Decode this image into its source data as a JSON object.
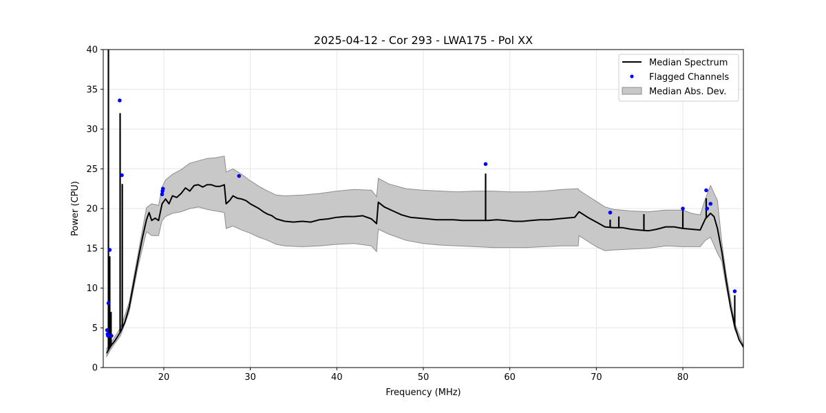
{
  "chart_data": {
    "type": "line",
    "title": "2025-04-12 - Cor 293 - LWA175 - Pol XX",
    "xlabel": "Frequency (MHz)",
    "ylabel": "Power (CPU)",
    "xlim": [
      13,
      87
    ],
    "ylim": [
      0,
      40
    ],
    "xticks": [
      20,
      30,
      40,
      50,
      60,
      70,
      80
    ],
    "yticks": [
      0,
      5,
      10,
      15,
      20,
      25,
      30,
      35,
      40
    ],
    "grid": true,
    "legend_position": "top-right",
    "legend": [
      "Median Spectrum",
      "Flagged Channels",
      "Median Abs. Dev."
    ],
    "colors": {
      "median": "#000000",
      "flagged": "#0000ff",
      "band": "#c8c8c8",
      "band_edge": "#8c8c8c"
    },
    "median_spectrum": [
      [
        13.4,
        1.8
      ],
      [
        13.7,
        2.4
      ],
      [
        14.0,
        2.9
      ],
      [
        14.3,
        3.3
      ],
      [
        14.6,
        3.8
      ],
      [
        15.0,
        4.5
      ],
      [
        15.5,
        5.7
      ],
      [
        16.0,
        7.6
      ],
      [
        16.5,
        10.5
      ],
      [
        17.0,
        13.4
      ],
      [
        17.5,
        16.2
      ],
      [
        18.0,
        18.6
      ],
      [
        18.3,
        19.5
      ],
      [
        18.6,
        18.5
      ],
      [
        19.0,
        18.8
      ],
      [
        19.4,
        18.5
      ],
      [
        19.8,
        20.6
      ],
      [
        20.2,
        21.2
      ],
      [
        20.6,
        20.6
      ],
      [
        21.0,
        21.6
      ],
      [
        21.5,
        21.4
      ],
      [
        22.0,
        21.9
      ],
      [
        22.5,
        22.6
      ],
      [
        23.0,
        22.2
      ],
      [
        23.5,
        22.9
      ],
      [
        24.0,
        23.0
      ],
      [
        24.5,
        22.7
      ],
      [
        25.0,
        23.0
      ],
      [
        25.5,
        23.0
      ],
      [
        26.0,
        22.8
      ],
      [
        26.5,
        22.8
      ],
      [
        27.0,
        23.0
      ],
      [
        27.2,
        20.6
      ],
      [
        27.6,
        21.0
      ],
      [
        28.0,
        21.6
      ],
      [
        28.5,
        21.3
      ],
      [
        29.0,
        21.2
      ],
      [
        29.5,
        21.0
      ],
      [
        30.0,
        20.6
      ],
      [
        30.5,
        20.3
      ],
      [
        31.0,
        20.0
      ],
      [
        31.5,
        19.6
      ],
      [
        32.0,
        19.3
      ],
      [
        32.5,
        19.1
      ],
      [
        33.0,
        18.7
      ],
      [
        34.0,
        18.4
      ],
      [
        35.0,
        18.3
      ],
      [
        36.0,
        18.4
      ],
      [
        37.0,
        18.3
      ],
      [
        38.0,
        18.6
      ],
      [
        39.0,
        18.7
      ],
      [
        40.0,
        18.9
      ],
      [
        41.0,
        19.0
      ],
      [
        42.0,
        19.0
      ],
      [
        43.0,
        19.1
      ],
      [
        44.0,
        18.7
      ],
      [
        44.6,
        18.1
      ],
      [
        44.8,
        20.8
      ],
      [
        45.5,
        20.2
      ],
      [
        46.5,
        19.7
      ],
      [
        47.5,
        19.2
      ],
      [
        48.5,
        18.9
      ],
      [
        49.5,
        18.8
      ],
      [
        50.5,
        18.7
      ],
      [
        51.5,
        18.6
      ],
      [
        52.5,
        18.6
      ],
      [
        53.5,
        18.6
      ],
      [
        54.5,
        18.5
      ],
      [
        55.5,
        18.5
      ],
      [
        56.5,
        18.5
      ],
      [
        57.5,
        18.5
      ],
      [
        58.5,
        18.6
      ],
      [
        59.5,
        18.5
      ],
      [
        60.5,
        18.4
      ],
      [
        61.5,
        18.4
      ],
      [
        62.5,
        18.5
      ],
      [
        63.5,
        18.6
      ],
      [
        64.5,
        18.6
      ],
      [
        65.5,
        18.7
      ],
      [
        66.5,
        18.8
      ],
      [
        67.5,
        18.9
      ],
      [
        68.0,
        19.6
      ],
      [
        69.0,
        18.9
      ],
      [
        70.0,
        18.3
      ],
      [
        71.0,
        17.7
      ],
      [
        72.0,
        17.6
      ],
      [
        73.0,
        17.6
      ],
      [
        74.0,
        17.4
      ],
      [
        75.0,
        17.3
      ],
      [
        76.0,
        17.2
      ],
      [
        77.0,
        17.4
      ],
      [
        78.0,
        17.7
      ],
      [
        79.0,
        17.7
      ],
      [
        80.0,
        17.5
      ],
      [
        81.0,
        17.4
      ],
      [
        82.0,
        17.3
      ],
      [
        82.6,
        18.7
      ],
      [
        83.2,
        19.4
      ],
      [
        83.6,
        19.0
      ],
      [
        84.0,
        17.5
      ],
      [
        84.5,
        14.6
      ],
      [
        85.0,
        11.0
      ],
      [
        85.5,
        7.7
      ],
      [
        86.0,
        5.2
      ],
      [
        86.5,
        3.5
      ],
      [
        87.0,
        2.6
      ]
    ],
    "mad_upper": [
      [
        13.4,
        2.4
      ],
      [
        14.0,
        3.3
      ],
      [
        15.0,
        5.0
      ],
      [
        16.0,
        8.2
      ],
      [
        17.0,
        14.2
      ],
      [
        18.0,
        20.1
      ],
      [
        18.6,
        20.6
      ],
      [
        19.4,
        20.4
      ],
      [
        19.8,
        22.7
      ],
      [
        20.2,
        23.6
      ],
      [
        21.0,
        24.3
      ],
      [
        22.0,
        24.9
      ],
      [
        23.0,
        25.7
      ],
      [
        24.0,
        26.0
      ],
      [
        25.0,
        26.3
      ],
      [
        26.0,
        26.4
      ],
      [
        27.0,
        26.6
      ],
      [
        27.2,
        24.6
      ],
      [
        28.0,
        25.0
      ],
      [
        29.0,
        24.3
      ],
      [
        30.0,
        23.5
      ],
      [
        31.0,
        22.8
      ],
      [
        32.0,
        22.2
      ],
      [
        33.0,
        21.7
      ],
      [
        34.0,
        21.6
      ],
      [
        36.0,
        21.7
      ],
      [
        38.0,
        21.9
      ],
      [
        40.0,
        22.2
      ],
      [
        42.0,
        22.4
      ],
      [
        44.0,
        22.3
      ],
      [
        44.6,
        21.5
      ],
      [
        44.8,
        23.8
      ],
      [
        46.0,
        23.1
      ],
      [
        48.0,
        22.5
      ],
      [
        50.0,
        22.3
      ],
      [
        52.0,
        22.2
      ],
      [
        54.0,
        22.1
      ],
      [
        56.0,
        22.2
      ],
      [
        58.0,
        22.2
      ],
      [
        60.0,
        22.1
      ],
      [
        62.0,
        22.1
      ],
      [
        64.0,
        22.2
      ],
      [
        66.0,
        22.4
      ],
      [
        67.9,
        22.5
      ],
      [
        68.0,
        22.3
      ],
      [
        69.0,
        21.6
      ],
      [
        70.0,
        20.9
      ],
      [
        71.0,
        20.2
      ],
      [
        72.0,
        19.9
      ],
      [
        74.0,
        19.7
      ],
      [
        76.0,
        19.6
      ],
      [
        78.0,
        19.8
      ],
      [
        80.0,
        19.8
      ],
      [
        81.0,
        19.4
      ],
      [
        82.0,
        19.2
      ],
      [
        82.6,
        21.2
      ],
      [
        83.2,
        22.9
      ],
      [
        84.0,
        21.0
      ],
      [
        84.5,
        15.8
      ],
      [
        85.0,
        11.8
      ],
      [
        86.0,
        5.6
      ],
      [
        87.0,
        2.8
      ]
    ],
    "mad_lower": [
      [
        13.4,
        1.4
      ],
      [
        14.0,
        2.5
      ],
      [
        15.0,
        4.0
      ],
      [
        16.0,
        7.0
      ],
      [
        17.0,
        12.6
      ],
      [
        18.0,
        17.1
      ],
      [
        18.6,
        16.6
      ],
      [
        19.4,
        16.6
      ],
      [
        19.8,
        18.5
      ],
      [
        20.2,
        19.0
      ],
      [
        21.0,
        19.4
      ],
      [
        22.0,
        19.6
      ],
      [
        23.0,
        20.0
      ],
      [
        24.0,
        20.2
      ],
      [
        25.0,
        19.9
      ],
      [
        26.0,
        19.7
      ],
      [
        27.0,
        19.5
      ],
      [
        27.2,
        17.5
      ],
      [
        28.0,
        17.8
      ],
      [
        29.0,
        17.3
      ],
      [
        30.0,
        16.9
      ],
      [
        31.0,
        16.4
      ],
      [
        32.0,
        16.0
      ],
      [
        33.0,
        15.5
      ],
      [
        34.0,
        15.3
      ],
      [
        36.0,
        15.2
      ],
      [
        38.0,
        15.3
      ],
      [
        40.0,
        15.5
      ],
      [
        42.0,
        15.6
      ],
      [
        44.0,
        15.3
      ],
      [
        44.6,
        14.6
      ],
      [
        44.8,
        17.4
      ],
      [
        46.0,
        16.8
      ],
      [
        48.0,
        16.0
      ],
      [
        50.0,
        15.6
      ],
      [
        52.0,
        15.4
      ],
      [
        54.0,
        15.3
      ],
      [
        56.0,
        15.2
      ],
      [
        58.0,
        15.1
      ],
      [
        60.0,
        15.1
      ],
      [
        62.0,
        15.1
      ],
      [
        64.0,
        15.2
      ],
      [
        66.0,
        15.3
      ],
      [
        67.9,
        15.3
      ],
      [
        68.0,
        16.6
      ],
      [
        69.0,
        15.9
      ],
      [
        70.0,
        15.2
      ],
      [
        71.0,
        14.7
      ],
      [
        72.0,
        14.8
      ],
      [
        74.0,
        14.9
      ],
      [
        76.0,
        15.0
      ],
      [
        78.0,
        15.3
      ],
      [
        80.0,
        15.2
      ],
      [
        81.0,
        15.2
      ],
      [
        82.0,
        15.2
      ],
      [
        82.6,
        16.0
      ],
      [
        83.2,
        16.4
      ],
      [
        84.0,
        14.4
      ],
      [
        84.5,
        13.4
      ],
      [
        85.0,
        10.2
      ],
      [
        86.0,
        4.8
      ],
      [
        87.0,
        2.4
      ]
    ],
    "spikes": [
      [
        13.6,
        40.0
      ],
      [
        13.75,
        14.0
      ],
      [
        13.9,
        7.0
      ],
      [
        14.95,
        32.0
      ],
      [
        15.2,
        23.1
      ],
      [
        57.2,
        24.4
      ],
      [
        71.6,
        18.6
      ],
      [
        72.6,
        19.0
      ],
      [
        75.5,
        19.3
      ],
      [
        80.0,
        20.0
      ],
      [
        82.7,
        21.3
      ],
      [
        86.0,
        9.1
      ]
    ],
    "flagged_channels": [
      [
        13.45,
        4.7
      ],
      [
        13.5,
        4.2
      ],
      [
        13.55,
        4.0
      ],
      [
        13.6,
        8.1
      ],
      [
        13.75,
        14.8
      ],
      [
        13.95,
        4.0
      ],
      [
        14.9,
        33.6
      ],
      [
        15.15,
        24.2
      ],
      [
        19.8,
        21.8
      ],
      [
        19.85,
        22.2
      ],
      [
        19.9,
        22.5
      ],
      [
        28.7,
        24.1
      ],
      [
        57.2,
        25.6
      ],
      [
        71.6,
        19.5
      ],
      [
        80.0,
        20.0
      ],
      [
        82.7,
        22.3
      ],
      [
        82.8,
        20.0
      ],
      [
        83.2,
        20.6
      ],
      [
        86.0,
        9.6
      ]
    ]
  }
}
